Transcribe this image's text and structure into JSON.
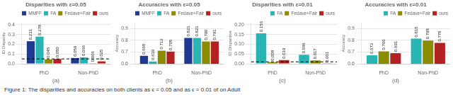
{
  "caption": "Figure 1:  The disparities and accuracies on both clients as ϵ = 0.05 and as ϵ = 0.01 of on Adult",
  "chart_data": [
    {
      "type": "bar",
      "title": "Disparities with ε=0.05",
      "subtitle": "(a)",
      "ylabel": "ID Disparity",
      "categories": [
        "PhD",
        "Non-PhD"
      ],
      "series": [
        {
          "name": "MMFF",
          "color": "#1f3a8f",
          "values": [
            0.231,
            0.059
          ],
          "value_labels": [
            "0.231",
            "0.059"
          ]
        },
        {
          "name": "FA",
          "color": "#2ab5b5",
          "values": [
            0.278,
            0.066
          ],
          "value_labels": [
            "0.278",
            "0.066"
          ]
        },
        {
          "name": "Fedave+Fair",
          "color": "#8b8b00",
          "values": [
            0.045,
            0.006
          ],
          "value_labels": [
            "0.045",
            "0.006"
          ]
        },
        {
          "name": "ours",
          "color": "#b22222",
          "values": [
            0.05,
            0.025
          ],
          "value_labels": [
            "0.050",
            "0.025"
          ]
        }
      ],
      "ylim": [
        0,
        0.42
      ],
      "yticks": [
        {
          "value": 0,
          "label": "0.0"
        },
        0.1,
        0.2,
        0.3,
        0.4
      ],
      "dashed_line": 0.05,
      "grid": "y",
      "legend": "upper right",
      "data_labels": true
    },
    {
      "type": "bar",
      "title": "Accuracies with ε=0.05",
      "subtitle": "(b)",
      "ylabel": "Accuracy",
      "categories": [
        "PhD",
        "Non-PhD"
      ],
      "series": [
        {
          "name": "MMFF",
          "color": "#1f3a8f",
          "values": [
            0.668,
            0.821
          ],
          "value_labels": [
            "0.668",
            "0.821"
          ]
        },
        {
          "name": "FA",
          "color": "#2ab5b5",
          "values": [
            0.619,
            0.821
          ],
          "value_labels": [
            "0.619",
            "0.821"
          ]
        },
        {
          "name": "Fedave+Fair",
          "color": "#8b8b00",
          "values": [
            0.712,
            0.79
          ],
          "value_labels": [
            "0.712",
            "0.790"
          ]
        },
        {
          "name": "ours",
          "color": "#b22222",
          "values": [
            0.705,
            0.791
          ],
          "value_labels": [
            "0.705",
            "0.791"
          ]
        }
      ],
      "ylim": [
        0.6,
        0.95
      ],
      "yticks": [
        0.6,
        0.7,
        0.8,
        0.9
      ],
      "grid": "y",
      "legend": "upper right",
      "data_labels": true
    },
    {
      "type": "bar",
      "title": "Disparities with ε=0.01",
      "subtitle": "(c)",
      "ylabel": "ID Disparities",
      "categories": [
        "PhD",
        "Non-PhD"
      ],
      "series": [
        {
          "name": "FA",
          "color": "#2ab5b5",
          "values": [
            0.156,
            0.046
          ],
          "value_labels": [
            "0.156",
            "0.046"
          ]
        },
        {
          "name": "Fedave+Fair",
          "color": "#8b8b00",
          "values": [
            0.008,
            0.017
          ],
          "value_labels": [
            "0.008",
            "0.017"
          ]
        },
        {
          "name": "ours",
          "color": "#b22222",
          "values": [
            0.019,
            0.001
          ],
          "value_labels": [
            "0.019",
            "0.001"
          ]
        }
      ],
      "ylim": [
        0,
        0.21
      ],
      "yticks": [
        {
          "value": 0,
          "label": "0.00"
        },
        0.05,
        {
          "value": 0.1,
          "label": "0.10"
        },
        0.15,
        {
          "value": 0.2,
          "label": "0.20"
        }
      ],
      "dashed_line": 0.01,
      "grid": "y",
      "legend": "upper right",
      "data_labels": true
    },
    {
      "type": "bar",
      "title": "Accuracies with ε=0.01",
      "subtitle": "(d)",
      "ylabel": "Accuracy",
      "categories": [
        "PhD",
        "Non-PhD"
      ],
      "series": [
        {
          "name": "FA",
          "color": "#2ab5b5",
          "values": [
            0.673,
            0.815
          ],
          "value_labels": [
            "0.673",
            "0.815"
          ]
        },
        {
          "name": "Fedave+Fair",
          "color": "#8b8b00",
          "values": [
            0.706,
            0.798
          ],
          "value_labels": [
            "0.706",
            "0.798"
          ]
        },
        {
          "name": "ours",
          "color": "#b22222",
          "values": [
            0.691,
            0.778
          ],
          "value_labels": [
            "0.691",
            "0.778"
          ]
        }
      ],
      "ylim": [
        0.6,
        0.95
      ],
      "yticks": [
        0.6,
        0.7,
        0.8,
        0.9
      ],
      "grid": "y",
      "legend": "upper right",
      "data_labels": true
    }
  ]
}
